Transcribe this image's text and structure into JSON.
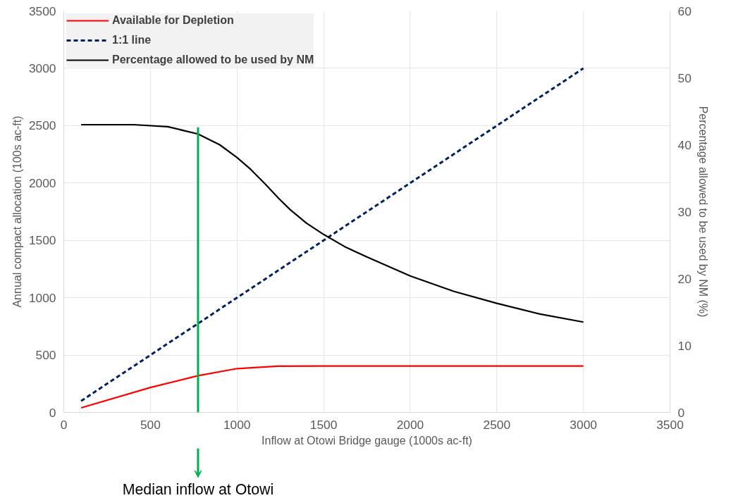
{
  "chart_data": {
    "type": "line",
    "xlabel": "Inflow at Otowi Bridge gauge (1000s ac-ft)",
    "ylabel": "Annual compact allocation (100s ac-ft)",
    "y2label": "Percentage allowed to be used by NM (%)",
    "xlim": [
      0,
      3500
    ],
    "xticks": [
      0,
      500,
      1000,
      1500,
      2000,
      2500,
      3000,
      3500
    ],
    "ylim": [
      0,
      3500
    ],
    "yticks": [
      0,
      500,
      1000,
      1500,
      2000,
      2500,
      3000,
      3500
    ],
    "y2lim": [
      0,
      60
    ],
    "y2ticks": [
      0,
      10,
      20,
      30,
      40,
      50,
      60
    ],
    "grid": true,
    "legend": "top left",
    "marker": "none",
    "series": [
      {
        "name": "Available for Depletion",
        "color": "#ff0000",
        "line_style": "solid",
        "x": [
          100,
          500,
          775,
          1000,
          1233,
          1500,
          2000,
          2500,
          3000
        ],
        "values": [
          40,
          217,
          320,
          382,
          403,
          405,
          405,
          405,
          405
        ]
      },
      {
        "name": "1:1 line",
        "color": "#002060",
        "line_style": "dashed",
        "x": [
          100,
          3000
        ],
        "values": [
          100,
          3000
        ]
      },
      {
        "name": "Percentage allowed to be used by NM",
        "color": "#000000",
        "line_style": "solid",
        "axis": "y2",
        "x": [
          100,
          404,
          600,
          775,
          900,
          1000,
          1080,
          1160,
          1240,
          1307,
          1400,
          1500,
          1620,
          1752,
          2000,
          2250,
          2500,
          2750,
          3000
        ],
        "values": [
          43.0,
          43.0,
          42.7,
          41.6,
          40.0,
          38.1,
          36.3,
          34.2,
          32.0,
          30.3,
          28.3,
          26.6,
          24.8,
          23.2,
          20.4,
          18.1,
          16.3,
          14.7,
          13.5
        ]
      }
    ],
    "ref_lines": [
      {
        "axis": "x",
        "value": 775,
        "color": "#00b050"
      }
    ],
    "annotations": [
      "Median inflow at Otowi"
    ]
  }
}
